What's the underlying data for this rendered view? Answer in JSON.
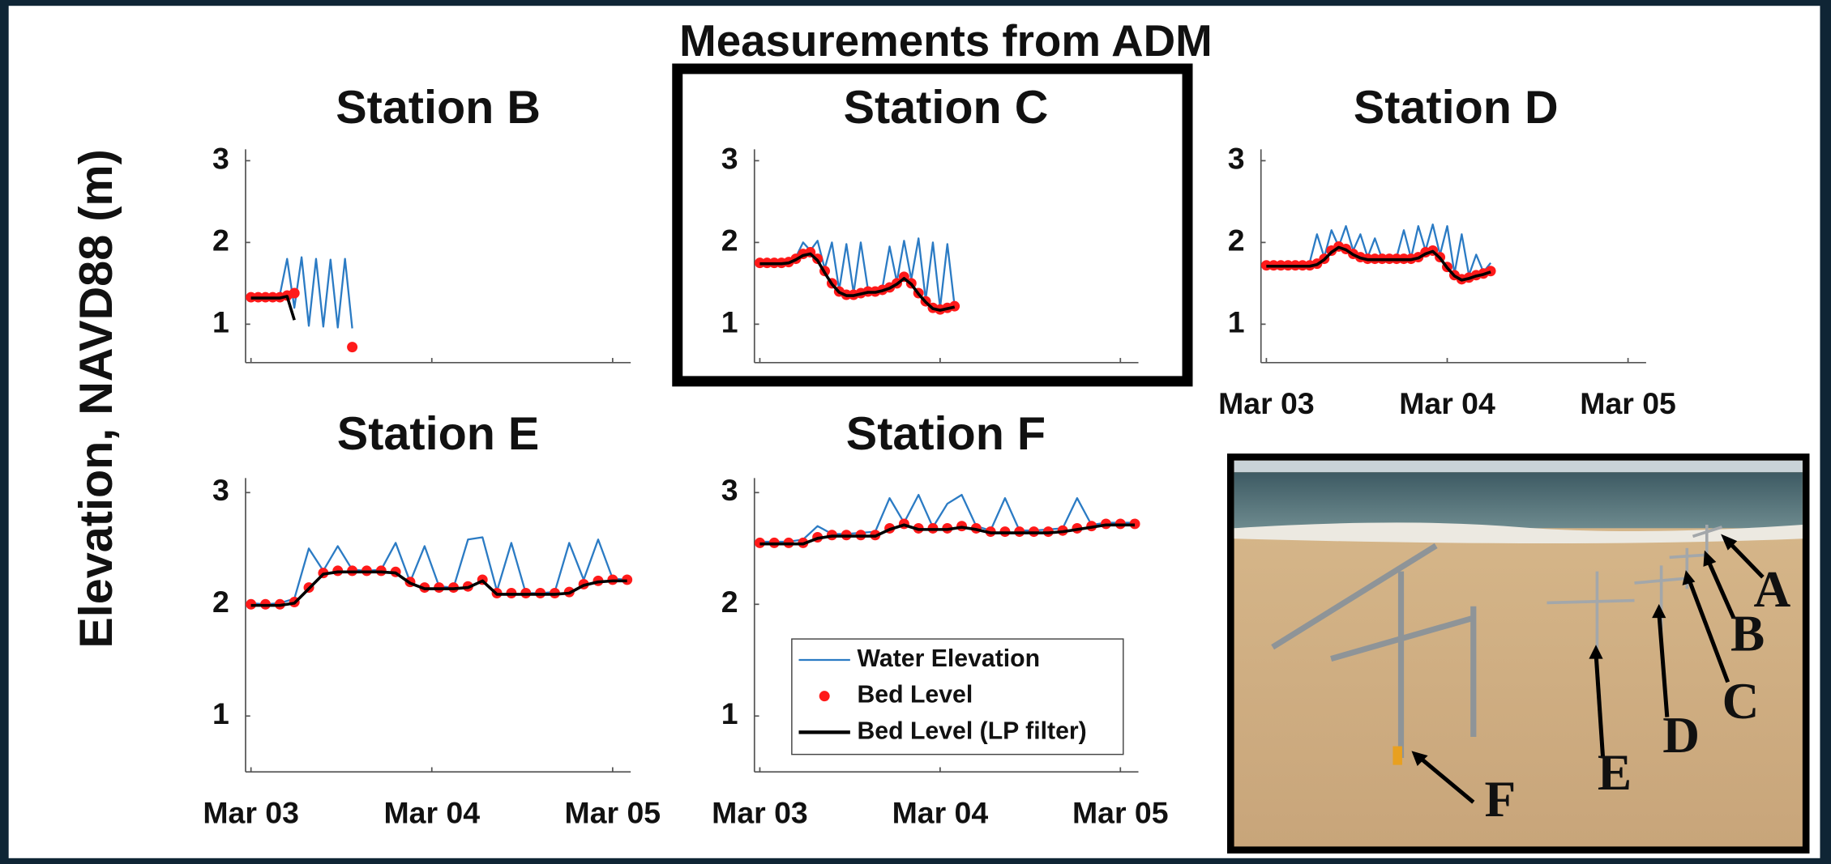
{
  "title": "Measurements from ADM",
  "ylabel": "Elevation, NAVD88 (m)",
  "photo": {
    "labels": [
      "A",
      "B",
      "C",
      "D",
      "E",
      "F"
    ]
  },
  "chart_data": [
    {
      "type": "line",
      "title": "Station B",
      "x": [
        0,
        0.04,
        0.08,
        0.12,
        0.16,
        0.2,
        0.24,
        0.28,
        0.32,
        0.36,
        0.4,
        0.44,
        0.48,
        0.52,
        0.56
      ],
      "xlim": [
        -0.03,
        2.1
      ],
      "xticks": [
        0,
        1,
        2
      ],
      "ylim": [
        0.53,
        3.14
      ],
      "yticks": [
        1,
        2,
        3
      ],
      "series": [
        {
          "kind": "line",
          "color": "#2b7bc4",
          "values": [
            1.34,
            1.34,
            1.35,
            1.34,
            1.36,
            1.8,
            1.2,
            1.82,
            0.98,
            1.8,
            0.97,
            1.79,
            0.96,
            1.8,
            0.95
          ]
        },
        {
          "kind": "points",
          "color": "#ff1a1a",
          "values": [
            1.33,
            1.33,
            1.33,
            1.33,
            1.33,
            1.35,
            1.38,
            null,
            null,
            null,
            null,
            null,
            null,
            null,
            0.72
          ]
        },
        {
          "kind": "line",
          "color": "#000000",
          "values": [
            1.32,
            1.32,
            1.32,
            1.32,
            1.32,
            1.34,
            1.05,
            null,
            null,
            null,
            null,
            null,
            null,
            null,
            null
          ]
        }
      ]
    },
    {
      "type": "line",
      "title": "Station C",
      "x": [
        0,
        0.04,
        0.08,
        0.12,
        0.16,
        0.2,
        0.24,
        0.28,
        0.32,
        0.36,
        0.4,
        0.44,
        0.48,
        0.52,
        0.56,
        0.6,
        0.64,
        0.68,
        0.72,
        0.76,
        0.8,
        0.84,
        0.88,
        0.92,
        0.96,
        1.0,
        1.04,
        1.08
      ],
      "xlim": [
        -0.03,
        2.1
      ],
      "xticks": [
        0,
        1,
        2
      ],
      "ylim": [
        0.53,
        3.14
      ],
      "yticks": [
        1,
        2,
        3
      ],
      "series": [
        {
          "kind": "line",
          "color": "#2b7bc4",
          "values": [
            1.77,
            1.77,
            1.77,
            1.78,
            1.78,
            1.82,
            2.0,
            1.9,
            2.02,
            1.68,
            2.0,
            1.42,
            1.98,
            1.38,
            2.0,
            1.42,
            1.43,
            1.45,
            1.95,
            1.52,
            2.02,
            1.55,
            2.05,
            1.3,
            2.0,
            1.2,
            1.98,
            1.22
          ]
        },
        {
          "kind": "points",
          "color": "#ff1a1a",
          "values": [
            1.75,
            1.75,
            1.75,
            1.75,
            1.76,
            1.8,
            1.86,
            1.88,
            1.8,
            1.65,
            1.5,
            1.4,
            1.36,
            1.36,
            1.38,
            1.4,
            1.4,
            1.42,
            1.45,
            1.5,
            1.58,
            1.5,
            1.38,
            1.28,
            1.2,
            1.18,
            1.2,
            1.22
          ]
        },
        {
          "kind": "line",
          "color": "#000000",
          "values": [
            1.74,
            1.74,
            1.74,
            1.74,
            1.75,
            1.79,
            1.84,
            1.86,
            1.78,
            1.63,
            1.49,
            1.39,
            1.35,
            1.35,
            1.37,
            1.39,
            1.39,
            1.41,
            1.44,
            1.49,
            1.56,
            1.49,
            1.37,
            1.27,
            1.19,
            1.17,
            1.19,
            1.21
          ]
        }
      ]
    },
    {
      "type": "line",
      "title": "Station D",
      "x": [
        0,
        0.04,
        0.08,
        0.12,
        0.16,
        0.2,
        0.24,
        0.28,
        0.32,
        0.36,
        0.4,
        0.44,
        0.48,
        0.52,
        0.56,
        0.6,
        0.64,
        0.68,
        0.72,
        0.76,
        0.8,
        0.84,
        0.88,
        0.92,
        0.96,
        1.0,
        1.04,
        1.08,
        1.12,
        1.16,
        1.2,
        1.24
      ],
      "xlim": [
        -0.03,
        2.1
      ],
      "xticks": [
        {
          "value": 0,
          "label": "Mar 03"
        },
        {
          "value": 1,
          "label": "Mar 04"
        },
        {
          "value": 2,
          "label": "Mar 05"
        }
      ],
      "ylim": [
        0.53,
        3.14
      ],
      "yticks": [
        1,
        2,
        3
      ],
      "series": [
        {
          "kind": "line",
          "color": "#2b7bc4",
          "values": [
            1.73,
            1.74,
            1.73,
            1.74,
            1.75,
            1.74,
            1.76,
            2.1,
            1.82,
            2.15,
            1.95,
            2.2,
            1.9,
            2.1,
            1.82,
            2.05,
            1.8,
            1.81,
            1.82,
            2.15,
            1.81,
            2.2,
            1.9,
            2.22,
            1.85,
            2.2,
            1.62,
            2.1,
            1.6,
            1.85,
            1.64,
            1.75
          ]
        },
        {
          "kind": "points",
          "color": "#ff1a1a",
          "values": [
            1.72,
            1.72,
            1.72,
            1.72,
            1.72,
            1.72,
            1.72,
            1.74,
            1.8,
            1.9,
            1.95,
            1.92,
            1.86,
            1.82,
            1.8,
            1.8,
            1.8,
            1.8,
            1.8,
            1.8,
            1.8,
            1.82,
            1.88,
            1.9,
            1.82,
            1.7,
            1.6,
            1.55,
            1.57,
            1.6,
            1.62,
            1.65
          ]
        },
        {
          "kind": "line",
          "color": "#000000",
          "values": [
            1.71,
            1.71,
            1.71,
            1.71,
            1.71,
            1.71,
            1.71,
            1.73,
            1.79,
            1.88,
            1.94,
            1.91,
            1.85,
            1.81,
            1.79,
            1.79,
            1.79,
            1.79,
            1.79,
            1.79,
            1.79,
            1.81,
            1.86,
            1.89,
            1.81,
            1.69,
            1.59,
            1.54,
            1.56,
            1.59,
            1.61,
            1.64
          ]
        }
      ]
    },
    {
      "type": "line",
      "title": "Station E",
      "x": [
        0,
        0.08,
        0.16,
        0.24,
        0.32,
        0.4,
        0.48,
        0.56,
        0.64,
        0.72,
        0.8,
        0.88,
        0.96,
        1.04,
        1.12,
        1.2,
        1.28,
        1.36,
        1.44,
        1.52,
        1.6,
        1.68,
        1.76,
        1.84,
        1.92,
        2.0,
        2.08
      ],
      "xlim": [
        -0.03,
        2.1
      ],
      "xticks": [
        {
          "value": 0,
          "label": "Mar 03"
        },
        {
          "value": 1,
          "label": "Mar 04"
        },
        {
          "value": 2,
          "label": "Mar 05"
        }
      ],
      "ylim": [
        0.5,
        3.13
      ],
      "yticks": [
        1,
        2,
        3
      ],
      "series": [
        {
          "kind": "line",
          "color": "#2b7bc4",
          "values": [
            2.01,
            2.0,
            2.01,
            2.05,
            2.5,
            2.3,
            2.52,
            2.31,
            2.3,
            2.31,
            2.55,
            2.2,
            2.52,
            2.16,
            2.15,
            2.58,
            2.6,
            2.12,
            2.55,
            2.1,
            2.1,
            2.11,
            2.55,
            2.22,
            2.58,
            2.23,
            2.22
          ]
        },
        {
          "kind": "points",
          "color": "#ff1a1a",
          "values": [
            2.0,
            2.0,
            2.0,
            2.02,
            2.15,
            2.28,
            2.3,
            2.3,
            2.3,
            2.3,
            2.29,
            2.2,
            2.15,
            2.15,
            2.15,
            2.16,
            2.22,
            2.1,
            2.1,
            2.1,
            2.1,
            2.1,
            2.11,
            2.18,
            2.21,
            2.22,
            2.22
          ]
        },
        {
          "kind": "line",
          "color": "#000000",
          "values": [
            1.99,
            1.99,
            1.99,
            2.01,
            2.14,
            2.27,
            2.29,
            2.29,
            2.29,
            2.29,
            2.28,
            2.19,
            2.14,
            2.14,
            2.14,
            2.15,
            2.21,
            2.09,
            2.09,
            2.09,
            2.09,
            2.09,
            2.1,
            2.17,
            2.2,
            2.21,
            2.21
          ]
        }
      ]
    },
    {
      "type": "line",
      "title": "Station F",
      "x": [
        0,
        0.08,
        0.16,
        0.24,
        0.32,
        0.4,
        0.48,
        0.56,
        0.64,
        0.72,
        0.8,
        0.88,
        0.96,
        1.04,
        1.12,
        1.2,
        1.28,
        1.36,
        1.44,
        1.52,
        1.6,
        1.68,
        1.76,
        1.84,
        1.92,
        2.0,
        2.08
      ],
      "xlim": [
        -0.03,
        2.1
      ],
      "xticks": [
        {
          "value": 0,
          "label": "Mar 03"
        },
        {
          "value": 1,
          "label": "Mar 04"
        },
        {
          "value": 2,
          "label": "Mar 05"
        }
      ],
      "ylim": [
        0.5,
        3.13
      ],
      "yticks": [
        1,
        2,
        3
      ],
      "series": [
        {
          "name": "Water Elevation",
          "kind": "line",
          "color": "#2b7bc4",
          "values": [
            2.56,
            2.56,
            2.56,
            2.58,
            2.7,
            2.63,
            2.63,
            2.64,
            2.65,
            2.95,
            2.73,
            2.98,
            2.69,
            2.9,
            2.98,
            2.7,
            2.66,
            2.95,
            2.66,
            2.66,
            2.67,
            2.68,
            2.95,
            2.71,
            2.73,
            2.73,
            2.73
          ]
        },
        {
          "name": "Bed Level",
          "kind": "points",
          "color": "#ff1a1a",
          "values": [
            2.55,
            2.55,
            2.55,
            2.55,
            2.6,
            2.62,
            2.62,
            2.62,
            2.62,
            2.68,
            2.72,
            2.68,
            2.68,
            2.68,
            2.7,
            2.68,
            2.65,
            2.65,
            2.65,
            2.65,
            2.65,
            2.66,
            2.68,
            2.7,
            2.72,
            2.72,
            2.72
          ]
        },
        {
          "name": "Bed Level (LP filter)",
          "kind": "line",
          "color": "#000000",
          "values": [
            2.54,
            2.54,
            2.54,
            2.54,
            2.59,
            2.61,
            2.61,
            2.61,
            2.61,
            2.67,
            2.71,
            2.67,
            2.67,
            2.67,
            2.69,
            2.67,
            2.64,
            2.64,
            2.64,
            2.64,
            2.64,
            2.65,
            2.67,
            2.69,
            2.71,
            2.71,
            2.71
          ]
        }
      ]
    }
  ]
}
